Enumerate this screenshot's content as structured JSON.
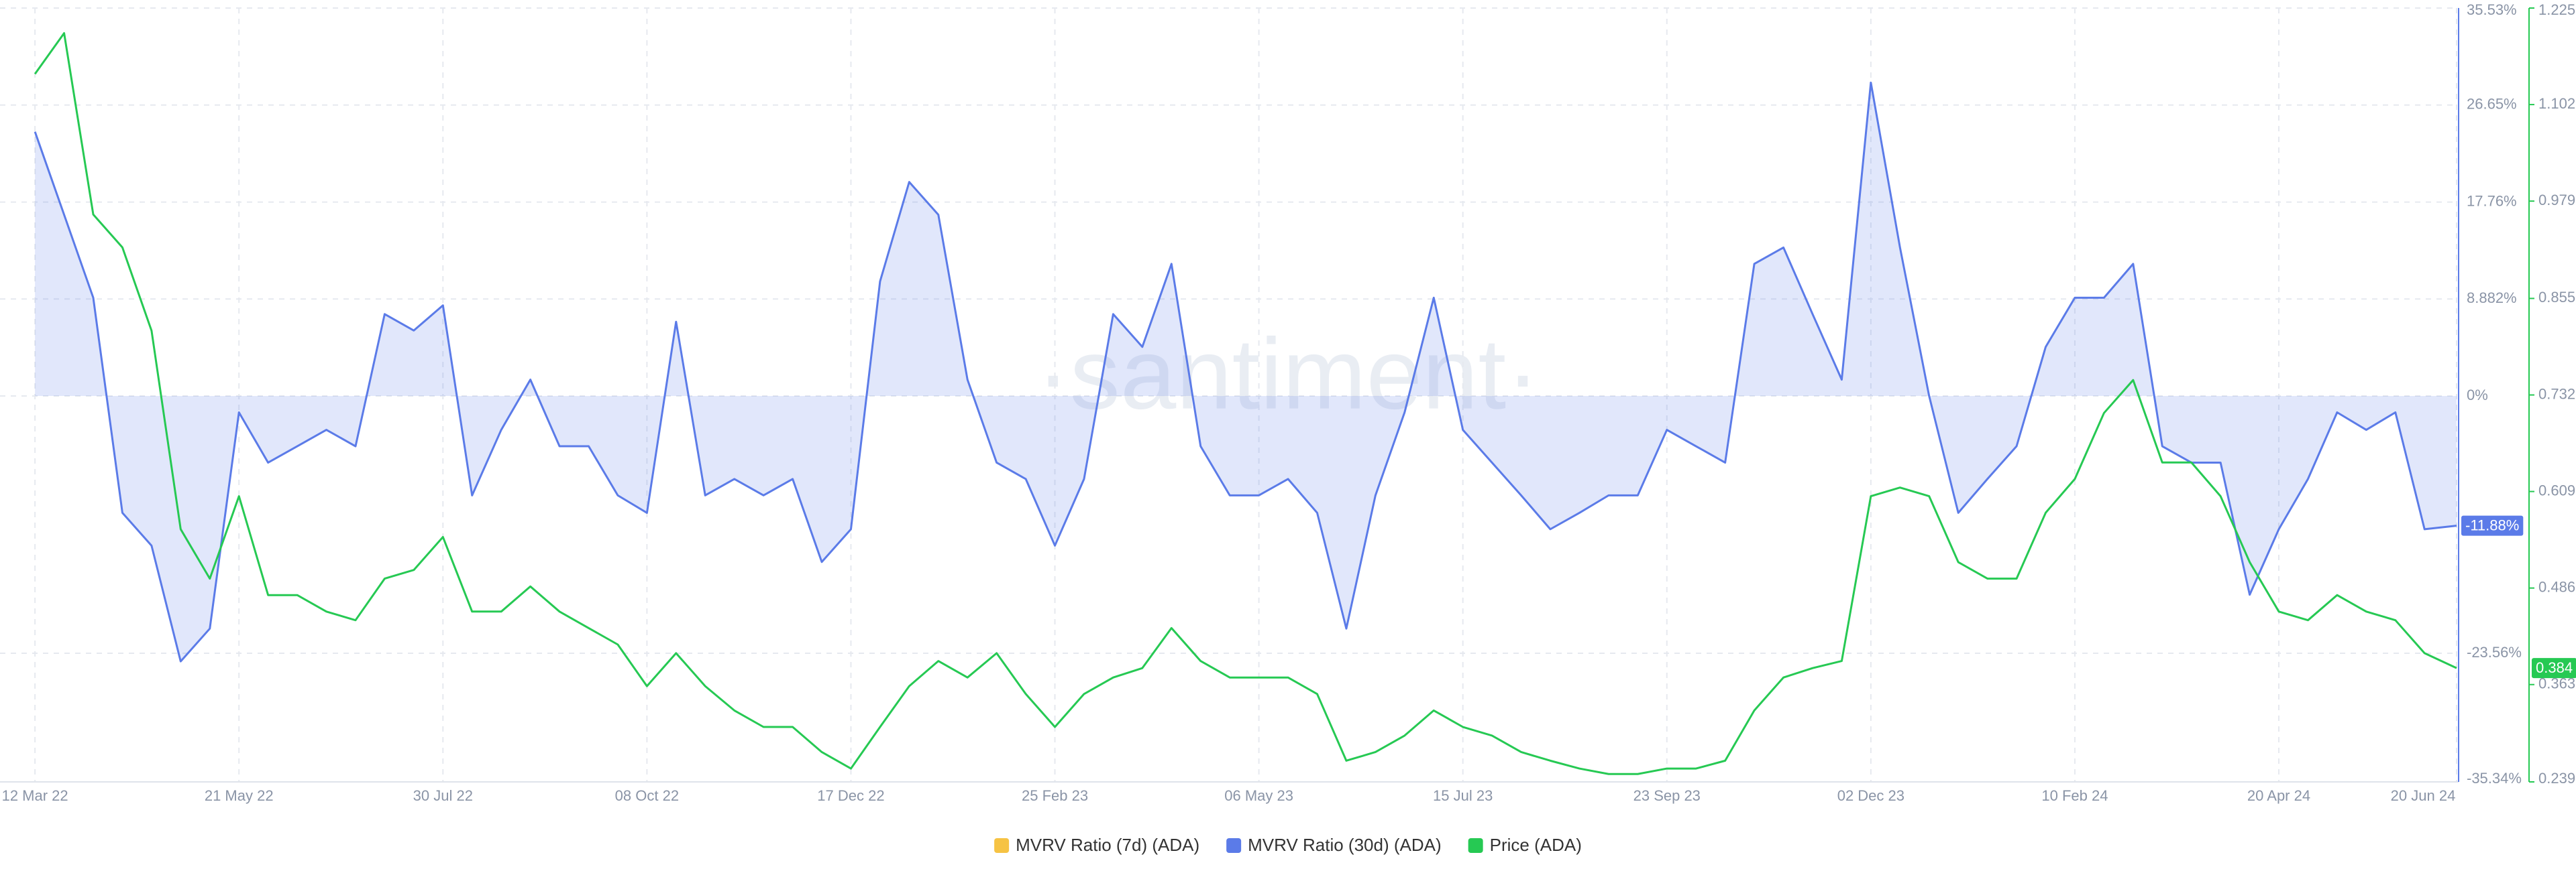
{
  "chart_data": {
    "type": "line",
    "watermark": "·santiment·",
    "x": [
      "12 Mar 22",
      "22 Mar 22",
      "01 Apr 22",
      "11 Apr 22",
      "21 Apr 22",
      "01 May 22",
      "11 May 22",
      "21 May 22",
      "31 May 22",
      "10 Jun 22",
      "20 Jun 22",
      "30 Jun 22",
      "10 Jul 22",
      "20 Jul 22",
      "30 Jul 22",
      "09 Aug 22",
      "19 Aug 22",
      "29 Aug 22",
      "08 Sep 22",
      "18 Sep 22",
      "28 Sep 22",
      "08 Oct 22",
      "18 Oct 22",
      "28 Oct 22",
      "07 Nov 22",
      "17 Nov 22",
      "27 Nov 22",
      "07 Dec 22",
      "17 Dec 22",
      "27 Dec 22",
      "06 Jan 23",
      "16 Jan 23",
      "26 Jan 23",
      "05 Feb 23",
      "15 Feb 23",
      "25 Feb 23",
      "07 Mar 23",
      "17 Mar 23",
      "27 Mar 23",
      "06 Apr 23",
      "16 Apr 23",
      "26 Apr 23",
      "06 May 23",
      "16 May 23",
      "26 May 23",
      "05 Jun 23",
      "15 Jun 23",
      "25 Jun 23",
      "05 Jul 23",
      "15 Jul 23",
      "25 Jul 23",
      "04 Aug 23",
      "14 Aug 23",
      "24 Aug 23",
      "03 Sep 23",
      "13 Sep 23",
      "23 Sep 23",
      "03 Oct 23",
      "13 Oct 23",
      "23 Oct 23",
      "02 Nov 23",
      "12 Nov 23",
      "22 Nov 23",
      "02 Dec 23",
      "12 Dec 23",
      "22 Dec 23",
      "01 Jan 24",
      "11 Jan 24",
      "21 Jan 24",
      "31 Jan 24",
      "10 Feb 24",
      "20 Feb 24",
      "01 Mar 24",
      "11 Mar 24",
      "21 Mar 24",
      "31 Mar 24",
      "10 Apr 24",
      "20 Apr 24",
      "30 Apr 24",
      "10 May 24",
      "20 May 24",
      "30 May 24",
      "09 Jun 24",
      "20 Jun 24"
    ],
    "xlim": [
      "28 Feb 22",
      "20 Jun 24"
    ],
    "xticks": [
      "12 Mar 22",
      "21 May 22",
      "30 Jul 22",
      "08 Oct 22",
      "17 Dec 22",
      "25 Feb 23",
      "06 May 23",
      "15 Jul 23",
      "23 Sep 23",
      "02 Dec 23",
      "10 Feb 24",
      "20 Apr 24",
      "20 Jun 24"
    ],
    "ylim": [
      -35.34,
      35.53
    ],
    "yticks": [
      {
        "value": 35.53,
        "label": "35.53%"
      },
      {
        "value": 26.65,
        "label": "26.65%"
      },
      {
        "value": 17.76,
        "label": "17.76%"
      },
      {
        "value": 8.882,
        "label": "8.882%"
      },
      {
        "value": 0,
        "label": "0%"
      },
      {
        "value": -23.56,
        "label": "-23.56%"
      },
      {
        "value": -35.34,
        "label": "-35.34%"
      }
    ],
    "y2lim": [
      0.239,
      1.225
    ],
    "y2ticks": [
      1.225,
      1.102,
      0.979,
      0.855,
      0.732,
      0.609,
      0.486,
      0.363,
      0.239
    ],
    "grid": true,
    "legend": "bottom",
    "series": [
      {
        "name": "MVRV Ratio (7d) (ADA)",
        "color": "#f6c344",
        "values": [
          null,
          null,
          null,
          null,
          null,
          null,
          null,
          null,
          null,
          null,
          null,
          null,
          null,
          null,
          null,
          null,
          null,
          null,
          null,
          null,
          null,
          null,
          null,
          null,
          null,
          null,
          null,
          null,
          null,
          null,
          null,
          null,
          null,
          null,
          null,
          null,
          null,
          null,
          null,
          null,
          null,
          null,
          null,
          null,
          null,
          null,
          null,
          null,
          null,
          null,
          null,
          null,
          null,
          null,
          null,
          null,
          null,
          null,
          null,
          null,
          null,
          null,
          null,
          null,
          null,
          null,
          null,
          null,
          null,
          null,
          null,
          null,
          null,
          null,
          null,
          null,
          null,
          null,
          null,
          null,
          null,
          null,
          null,
          null
        ]
      },
      {
        "name": "MVRV Ratio (30d) (ADA)",
        "color": "#5b7be8",
        "area": true,
        "badge": true,
        "values": [
          24.2,
          16.6,
          9.0,
          -10.7,
          -13.7,
          -24.3,
          -21.3,
          -1.5,
          -6.1,
          -4.6,
          -3.1,
          -4.6,
          7.5,
          6.0,
          8.3,
          -9.1,
          -3.1,
          1.5,
          -4.6,
          -4.6,
          -9.1,
          -10.7,
          6.8,
          -9.1,
          -7.6,
          -9.1,
          -7.6,
          -15.2,
          -12.2,
          10.5,
          19.6,
          16.6,
          1.5,
          -6.1,
          -7.6,
          -13.7,
          -7.6,
          7.5,
          4.5,
          12.1,
          -4.6,
          -9.1,
          -9.1,
          -7.6,
          -10.7,
          -21.3,
          -9.1,
          -1.5,
          9.0,
          -3.1,
          -6.1,
          -9.1,
          -12.2,
          -10.7,
          -9.1,
          -9.1,
          -3.1,
          -4.6,
          -6.1,
          12.1,
          13.6,
          7.5,
          1.5,
          28.7,
          13.6,
          0.0,
          -10.7,
          -7.6,
          -4.6,
          4.5,
          9.0,
          9.0,
          12.1,
          -4.6,
          -6.1,
          -6.1,
          -18.2,
          -12.2,
          -7.6,
          -1.5,
          -3.1,
          -1.5,
          -12.2,
          -11.88
        ],
        "value_labels": [
          null,
          null,
          null,
          null,
          null,
          null,
          null,
          null,
          null,
          null,
          null,
          null,
          null,
          null,
          null,
          null,
          null,
          null,
          null,
          null,
          null,
          null,
          null,
          null,
          null,
          null,
          null,
          null,
          null,
          null,
          null,
          null,
          null,
          null,
          null,
          null,
          null,
          null,
          null,
          null,
          null,
          null,
          null,
          null,
          null,
          null,
          null,
          null,
          null,
          null,
          null,
          null,
          null,
          null,
          null,
          null,
          null,
          null,
          null,
          null,
          null,
          null,
          null,
          null,
          null,
          null,
          null,
          null,
          null,
          null,
          null,
          null,
          null,
          null,
          null,
          null,
          null,
          null,
          null,
          null,
          null,
          null,
          null,
          "-11.88%"
        ]
      },
      {
        "name": "Price (ADA)",
        "color": "#26c953",
        "axis": "y2",
        "badge": true,
        "values": [
          1.141,
          1.193,
          0.962,
          0.92,
          0.814,
          0.561,
          0.498,
          0.603,
          0.477,
          0.477,
          0.456,
          0.445,
          0.498,
          0.509,
          0.551,
          0.456,
          0.456,
          0.488,
          0.456,
          0.435,
          0.414,
          0.361,
          0.403,
          0.361,
          0.33,
          0.309,
          0.309,
          0.277,
          0.256,
          0.309,
          0.361,
          0.393,
          0.372,
          0.403,
          0.351,
          0.309,
          0.351,
          0.372,
          0.384,
          0.435,
          0.393,
          0.372,
          0.372,
          0.372,
          0.351,
          0.266,
          0.277,
          0.298,
          0.33,
          0.309,
          0.298,
          0.277,
          0.266,
          0.256,
          0.249,
          0.249,
          0.256,
          0.256,
          0.266,
          0.33,
          0.372,
          0.384,
          0.393,
          0.603,
          0.614,
          0.603,
          0.519,
          0.498,
          0.498,
          0.582,
          0.625,
          0.709,
          0.751,
          0.646,
          0.646,
          0.603,
          0.519,
          0.456,
          0.445,
          0.477,
          0.456,
          0.445,
          0.403,
          0.384
        ]
      }
    ]
  }
}
